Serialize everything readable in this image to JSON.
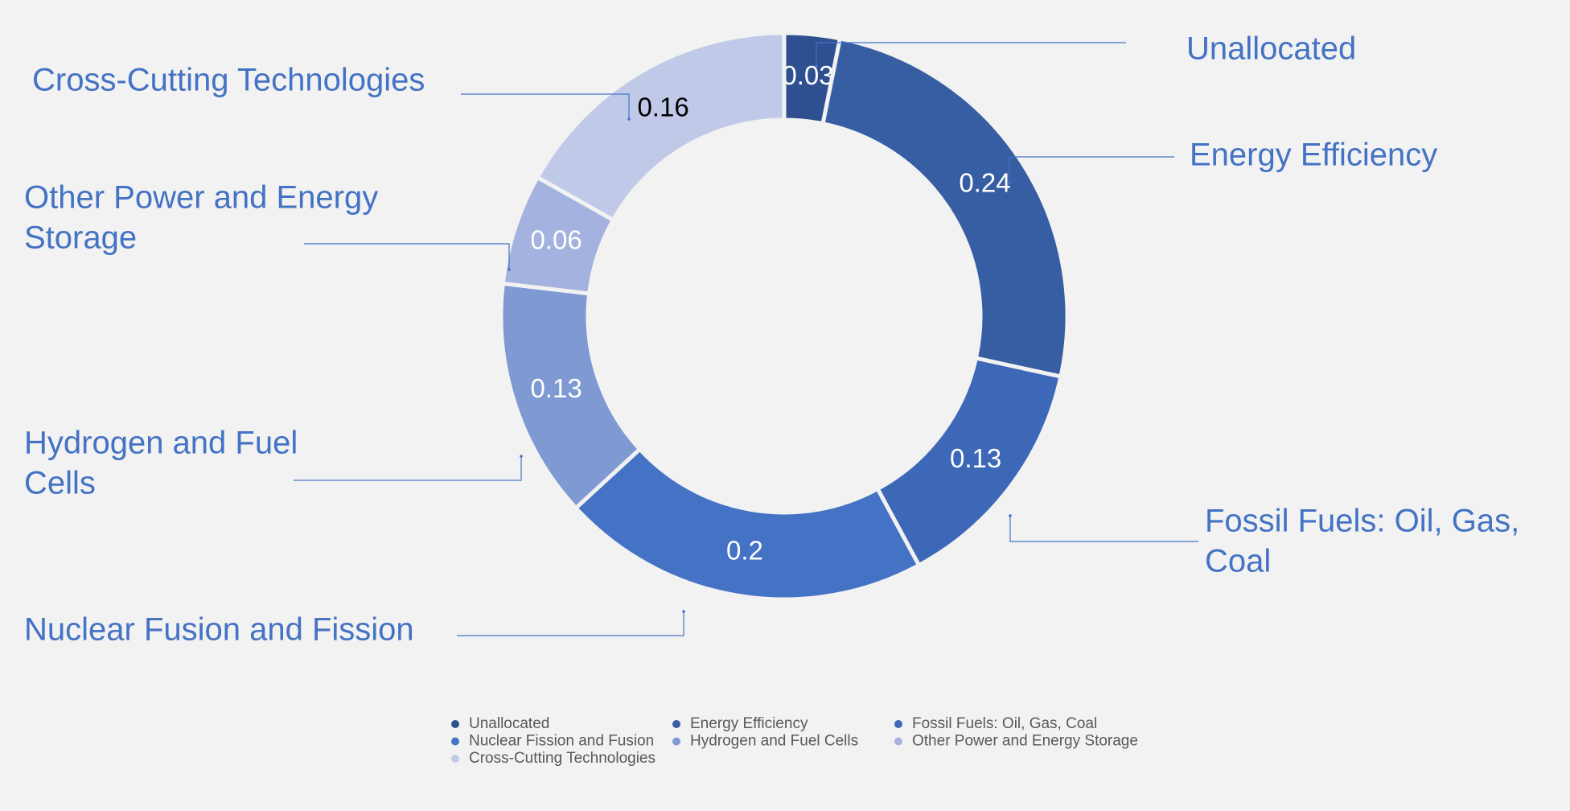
{
  "chart_data": {
    "type": "donut",
    "categories": [
      "Unallocated",
      "Energy Efficiency",
      "Fossil Fuels: Oil, Gas, Coal",
      "Nuclear Fission and Fusion",
      "Hydrogen and Fuel Cells",
      "Other Power and Energy Storage",
      "Cross-Cutting Technologies"
    ],
    "values": [
      0.03,
      0.24,
      0.13,
      0.2,
      0.13,
      0.06,
      0.16
    ],
    "colors": [
      "#2f5090",
      "#375ea3",
      "#3d68b8",
      "#4472c4",
      "#7f99d2",
      "#a3b2de",
      "#c0c9e7"
    ],
    "value_label_colors": [
      "#ffffff",
      "#ffffff",
      "#ffffff",
      "#ffffff",
      "#ffffff",
      "#ffffff",
      "#000000"
    ],
    "callout_labels": [
      [
        "Unallocated"
      ],
      [
        "Energy Efficiency"
      ],
      [
        "Fossil Fuels: Oil, Gas,",
        "Coal"
      ],
      [
        "Nuclear Fusion and Fission"
      ],
      [
        "Hydrogen and Fuel",
        "Cells"
      ],
      [
        "Other Power and Energy",
        "Storage"
      ],
      [
        "Cross-Cutting Technologies"
      ]
    ],
    "callout_color": "#4472c4",
    "legend": "bottom"
  }
}
